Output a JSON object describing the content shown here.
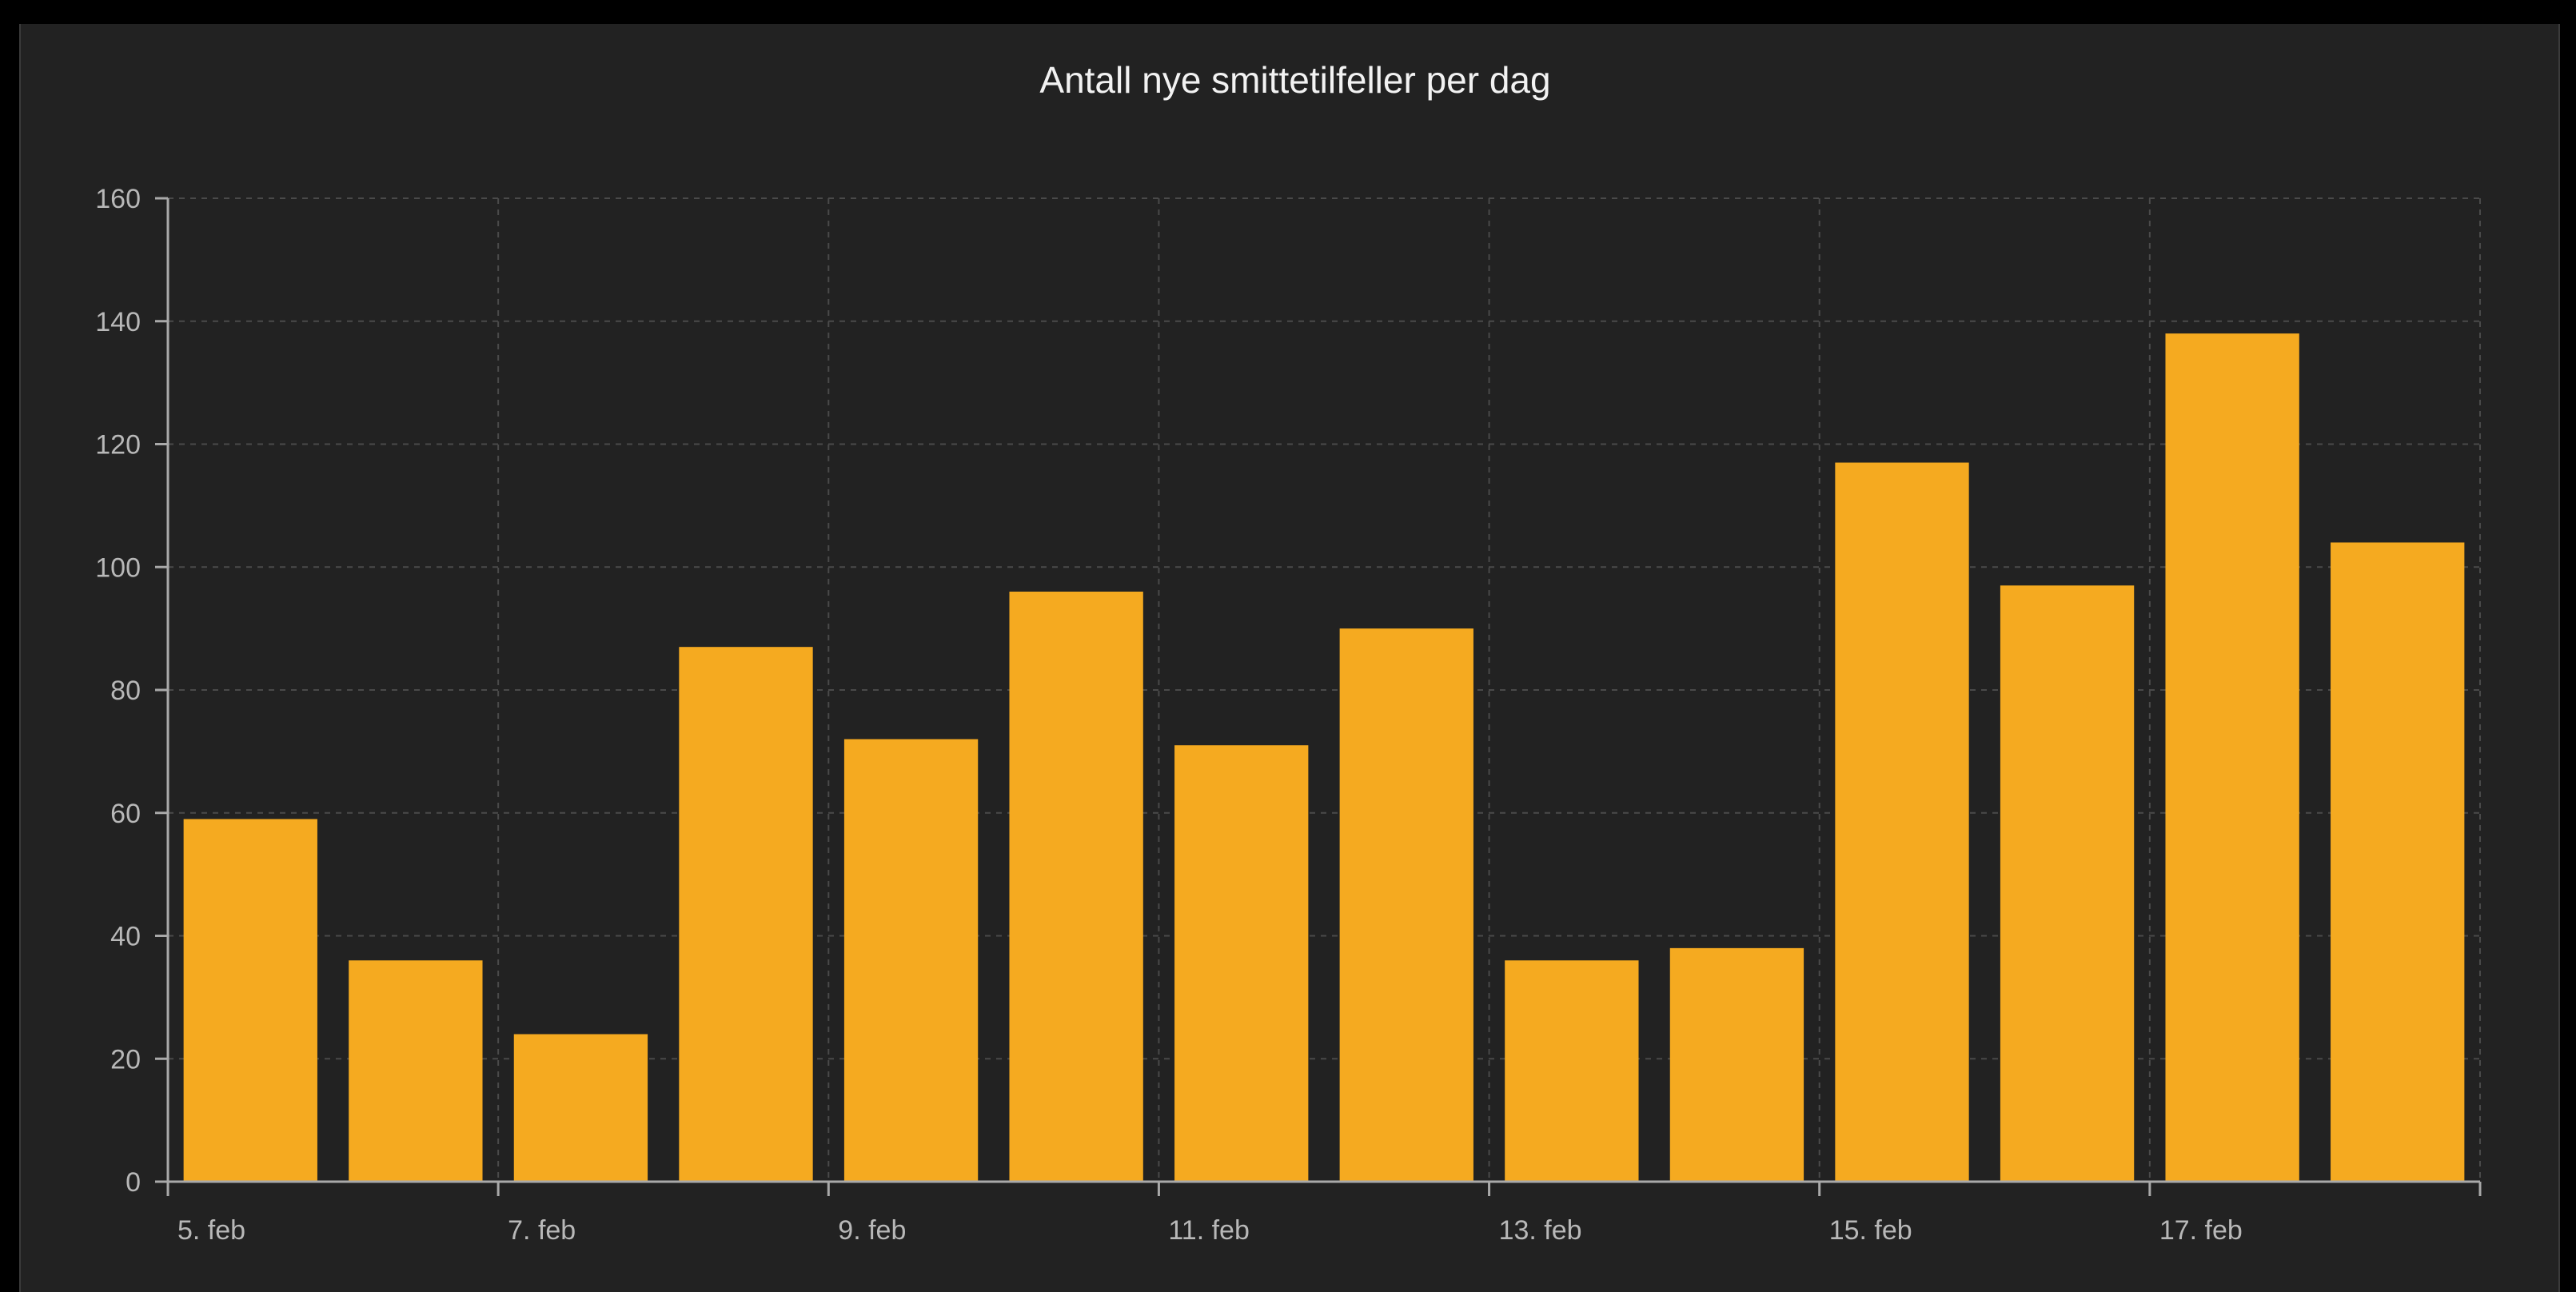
{
  "chart_data": {
    "type": "bar",
    "title": "Antall nye smittetilfeller per dag",
    "xlabel": "",
    "ylabel": "",
    "ylim": [
      0,
      160
    ],
    "yticks": [
      0,
      20,
      40,
      60,
      80,
      100,
      120,
      140,
      160
    ],
    "xtick_labels": [
      "5. feb",
      "7. feb",
      "9. feb",
      "11. feb",
      "13. feb",
      "15. feb",
      "17. feb"
    ],
    "categories": [
      "5. feb",
      "6. feb",
      "7. feb",
      "8. feb",
      "9. feb",
      "10. feb",
      "11. feb",
      "12. feb",
      "13. feb",
      "14. feb",
      "15. feb",
      "16. feb",
      "17. feb",
      "18. feb"
    ],
    "values": [
      59,
      36,
      24,
      87,
      72,
      96,
      71,
      90,
      36,
      38,
      117,
      97,
      138,
      104
    ],
    "bar_color": "#f5aa20",
    "grid": true,
    "background": "#222222"
  }
}
